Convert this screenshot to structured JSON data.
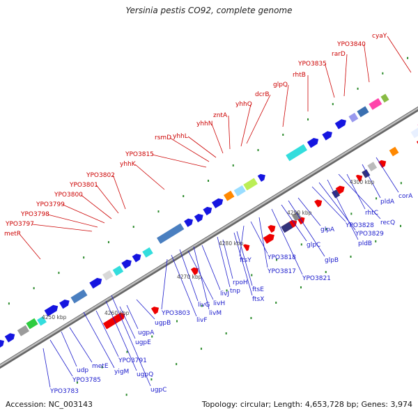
{
  "title": "Yersinia pestis CO92, complete genome",
  "footer": {
    "accession": "Accession: NC_003143",
    "summary": "Topology: circular; Length: 4,653,728 bp; Genes: 3,974"
  },
  "colors": {
    "backbone": "#8a8a8a",
    "top_label": "#cc0000",
    "bottom_label": "#1a1acc"
  },
  "ticks": [
    "4250 kbp",
    "4260 kbp",
    "4270 kbp",
    "4280 kbp",
    "4290 kbp",
    "4300 kbp"
  ],
  "top_labels": [
    "metR",
    "YPO3797",
    "YPO3798",
    "YPO3799",
    "YPO3800",
    "YPO3801",
    "YPO3802",
    "yhhK",
    "YPO3815",
    "rsmD",
    "yhhL",
    "yhhN",
    "zntA",
    "yhhQ",
    "dcrB",
    "glpQ",
    "rhtB",
    "YPO3835",
    "rarD",
    "YPO3840",
    "cyaY"
  ],
  "bottom_labels": [
    "YPO3783",
    "YPO3785",
    "udp",
    "metE",
    "yigM",
    "YPO3791",
    "ugpQ",
    "ugpC",
    "ugpE",
    "ugpA",
    "ugpB",
    "YPO3803",
    "livF",
    "livG",
    "livH",
    "livM",
    "livJ",
    "tnp",
    "rpoH",
    "ftsX",
    "ftsE",
    "ftsY",
    "YPO3818",
    "YPO3817",
    "YPO3821",
    "glpC",
    "glpB",
    "glpA",
    "YPO3828",
    "YPO3829",
    "pldB",
    "recQ",
    "rhtC",
    "pldA",
    "corA"
  ]
}
